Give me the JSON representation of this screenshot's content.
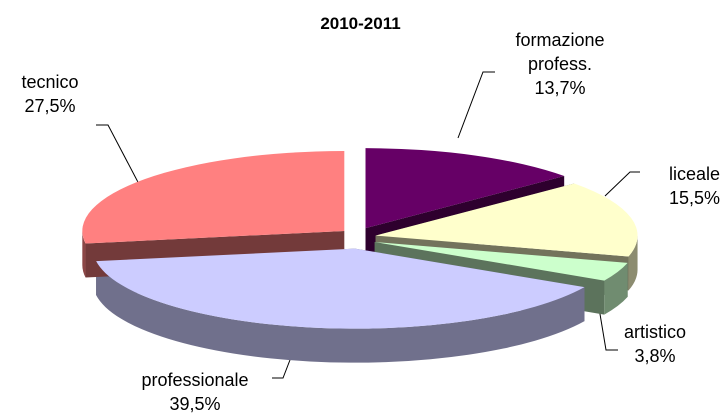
{
  "chart_data": {
    "type": "pie3d",
    "title": "2010-2011",
    "categories": [
      "formazione profess.",
      "liceale",
      "artistico",
      "professionale",
      "tecnico"
    ],
    "values": [
      13.7,
      15.5,
      3.8,
      39.5,
      27.5
    ],
    "value_labels": [
      "13,7%",
      "15,5%",
      "3,8%",
      "39,5%",
      "27,5%"
    ],
    "colors": [
      "#660066",
      "#FFFFCC",
      "#CCFFCC",
      "#CCCCFF",
      "#FF8080"
    ]
  }
}
